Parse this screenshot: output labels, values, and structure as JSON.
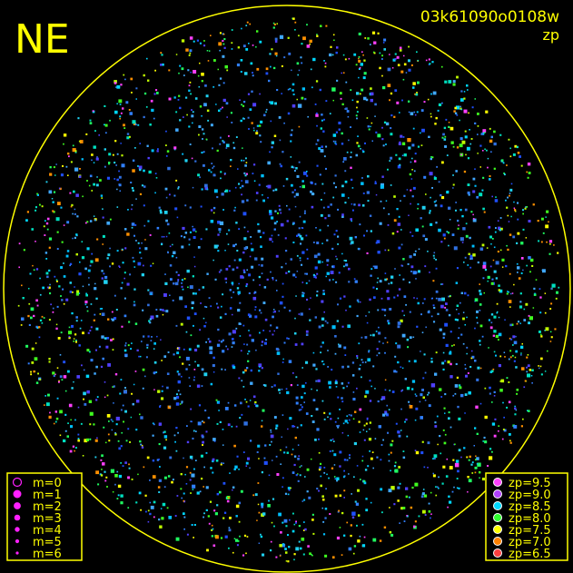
{
  "label": "NE",
  "frame_id": "03k61090o0108w",
  "quantity": "zp",
  "magnitude_legend": [
    "m=0",
    "m=1",
    "m=2",
    "m=3",
    "m=4",
    "m=5",
    "m=6"
  ],
  "zp_legend": [
    {
      "label": "zp=9.5",
      "color": "#ff40ff"
    },
    {
      "label": "zp=9.0",
      "color": "#b040ff"
    },
    {
      "label": "zp=8.5",
      "color": "#00d8ff"
    },
    {
      "label": "zp=8.0",
      "color": "#30ff30"
    },
    {
      "label": "zp=7.5",
      "color": "#ffff00"
    },
    {
      "label": "zp=7.0",
      "color": "#ff8000"
    },
    {
      "label": "zp=6.5",
      "color": "#ff4040"
    }
  ]
}
